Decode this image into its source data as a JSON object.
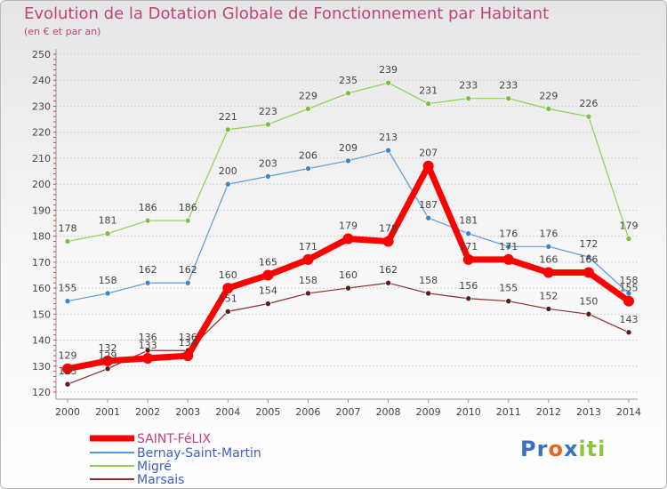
{
  "header": {
    "title": "Evolution de la Dotation Globale de Fonctionnement par Habitant",
    "subtitle": "(en € et par an)"
  },
  "logo": {
    "parts": [
      "Pr",
      "o",
      "x",
      "iti"
    ],
    "colors": [
      "#3a6fc4",
      "#e8661c",
      "#3a6fc4",
      "#8cc63f"
    ]
  },
  "chart_data": {
    "type": "line",
    "x": [
      2000,
      2001,
      2002,
      2003,
      2004,
      2005,
      2006,
      2007,
      2008,
      2009,
      2010,
      2011,
      2012,
      2013,
      2014
    ],
    "ylim": [
      120,
      250
    ],
    "yticks": [
      120,
      130,
      140,
      150,
      160,
      170,
      180,
      190,
      200,
      210,
      220,
      230,
      240,
      250
    ],
    "legend_position": "bottom-left",
    "series": [
      {
        "name": "Migré",
        "color": "#8fd14f",
        "marker": "#7bc043",
        "width": 1.2,
        "radius": 3,
        "values": [
          178,
          181,
          186,
          186,
          221,
          223,
          229,
          235,
          239,
          231,
          233,
          233,
          229,
          226,
          179
        ]
      },
      {
        "name": "Bernay-Saint-Martin",
        "color": "#5b9bd5",
        "marker": "#3d85c6",
        "width": 1.2,
        "radius": 3,
        "values": [
          155,
          158,
          162,
          162,
          200,
          203,
          206,
          209,
          213,
          187,
          181,
          176,
          176,
          172,
          158
        ]
      },
      {
        "name": "Marsais",
        "color": "#8b2d2d",
        "marker": "#5a1c1c",
        "width": 1.2,
        "radius": 3,
        "values": [
          123,
          129,
          136,
          136,
          151,
          154,
          158,
          160,
          162,
          158,
          156,
          155,
          152,
          150,
          143
        ]
      },
      {
        "name": "SAINT-FéLIX",
        "color": "#ff0000",
        "marker": "#ff0000",
        "width": 7,
        "radius": 6,
        "values": [
          129,
          132,
          133,
          134,
          160,
          165,
          171,
          179,
          178,
          207,
          171,
          171,
          166,
          166,
          155
        ]
      }
    ],
    "legend": [
      "SAINT-FéLIX",
      "Bernay-Saint-Martin",
      "Migré",
      "Marsais"
    ]
  }
}
